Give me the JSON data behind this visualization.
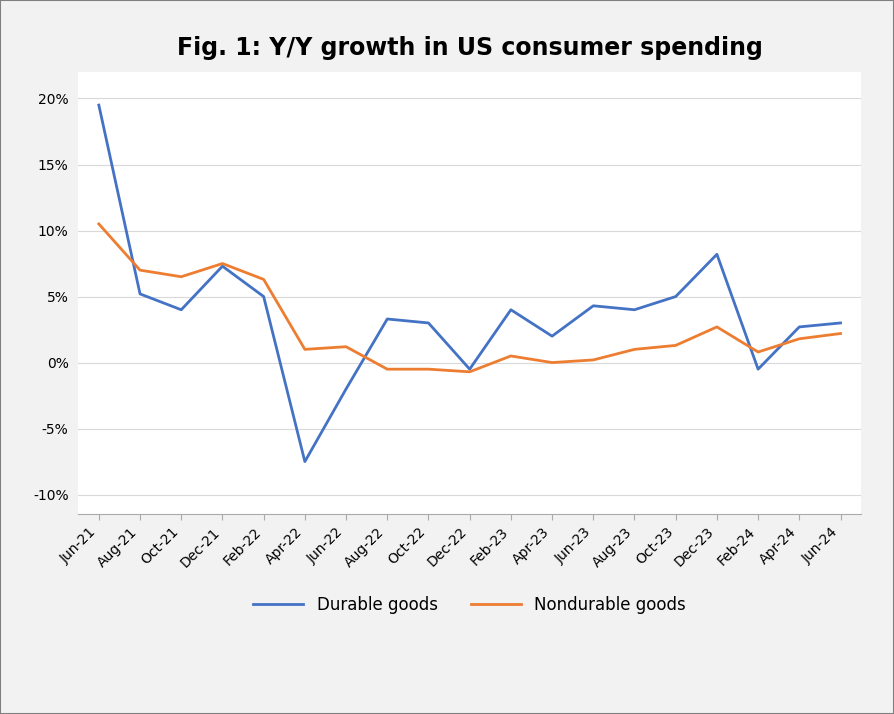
{
  "title": "Fig. 1: Y/Y growth in US consumer spending",
  "x_labels": [
    "Jun-21",
    "Aug-21",
    "Oct-21",
    "Dec-21",
    "Feb-22",
    "Apr-22",
    "Jun-22",
    "Aug-22",
    "Oct-22",
    "Dec-22",
    "Feb-23",
    "Apr-23",
    "Jun-23",
    "Aug-23",
    "Oct-23",
    "Dec-23",
    "Feb-24",
    "Apr-24",
    "Jun-24"
  ],
  "durable_goods": [
    19.5,
    5.2,
    4.0,
    7.3,
    5.0,
    -7.5,
    -2.0,
    3.3,
    3.0,
    -0.5,
    4.0,
    2.0,
    4.3,
    4.0,
    5.0,
    8.2,
    -0.5,
    2.7,
    3.0
  ],
  "nondurable_goods": [
    10.5,
    7.0,
    6.5,
    7.5,
    6.3,
    1.0,
    1.2,
    -0.5,
    -0.5,
    -0.7,
    0.5,
    0.0,
    0.2,
    1.0,
    1.3,
    2.7,
    0.8,
    1.8,
    2.2
  ],
  "durable_color": "#4472C4",
  "nondurable_color": "#ED7D31",
  "ylim_min": -11.5,
  "ylim_max": 22.0,
  "yticks": [
    -10,
    -5,
    0,
    5,
    10,
    15,
    20
  ],
  "ytick_labels": [
    "-10%",
    "-5%",
    "0%",
    "5%",
    "10%",
    "15%",
    "20%"
  ],
  "background_color": "#F2F2F2",
  "plot_bg_color": "#FFFFFF",
  "border_color": "#7F7F7F",
  "title_fontsize": 17,
  "axis_fontsize": 10,
  "legend_fontsize": 12,
  "line_width": 2.0
}
